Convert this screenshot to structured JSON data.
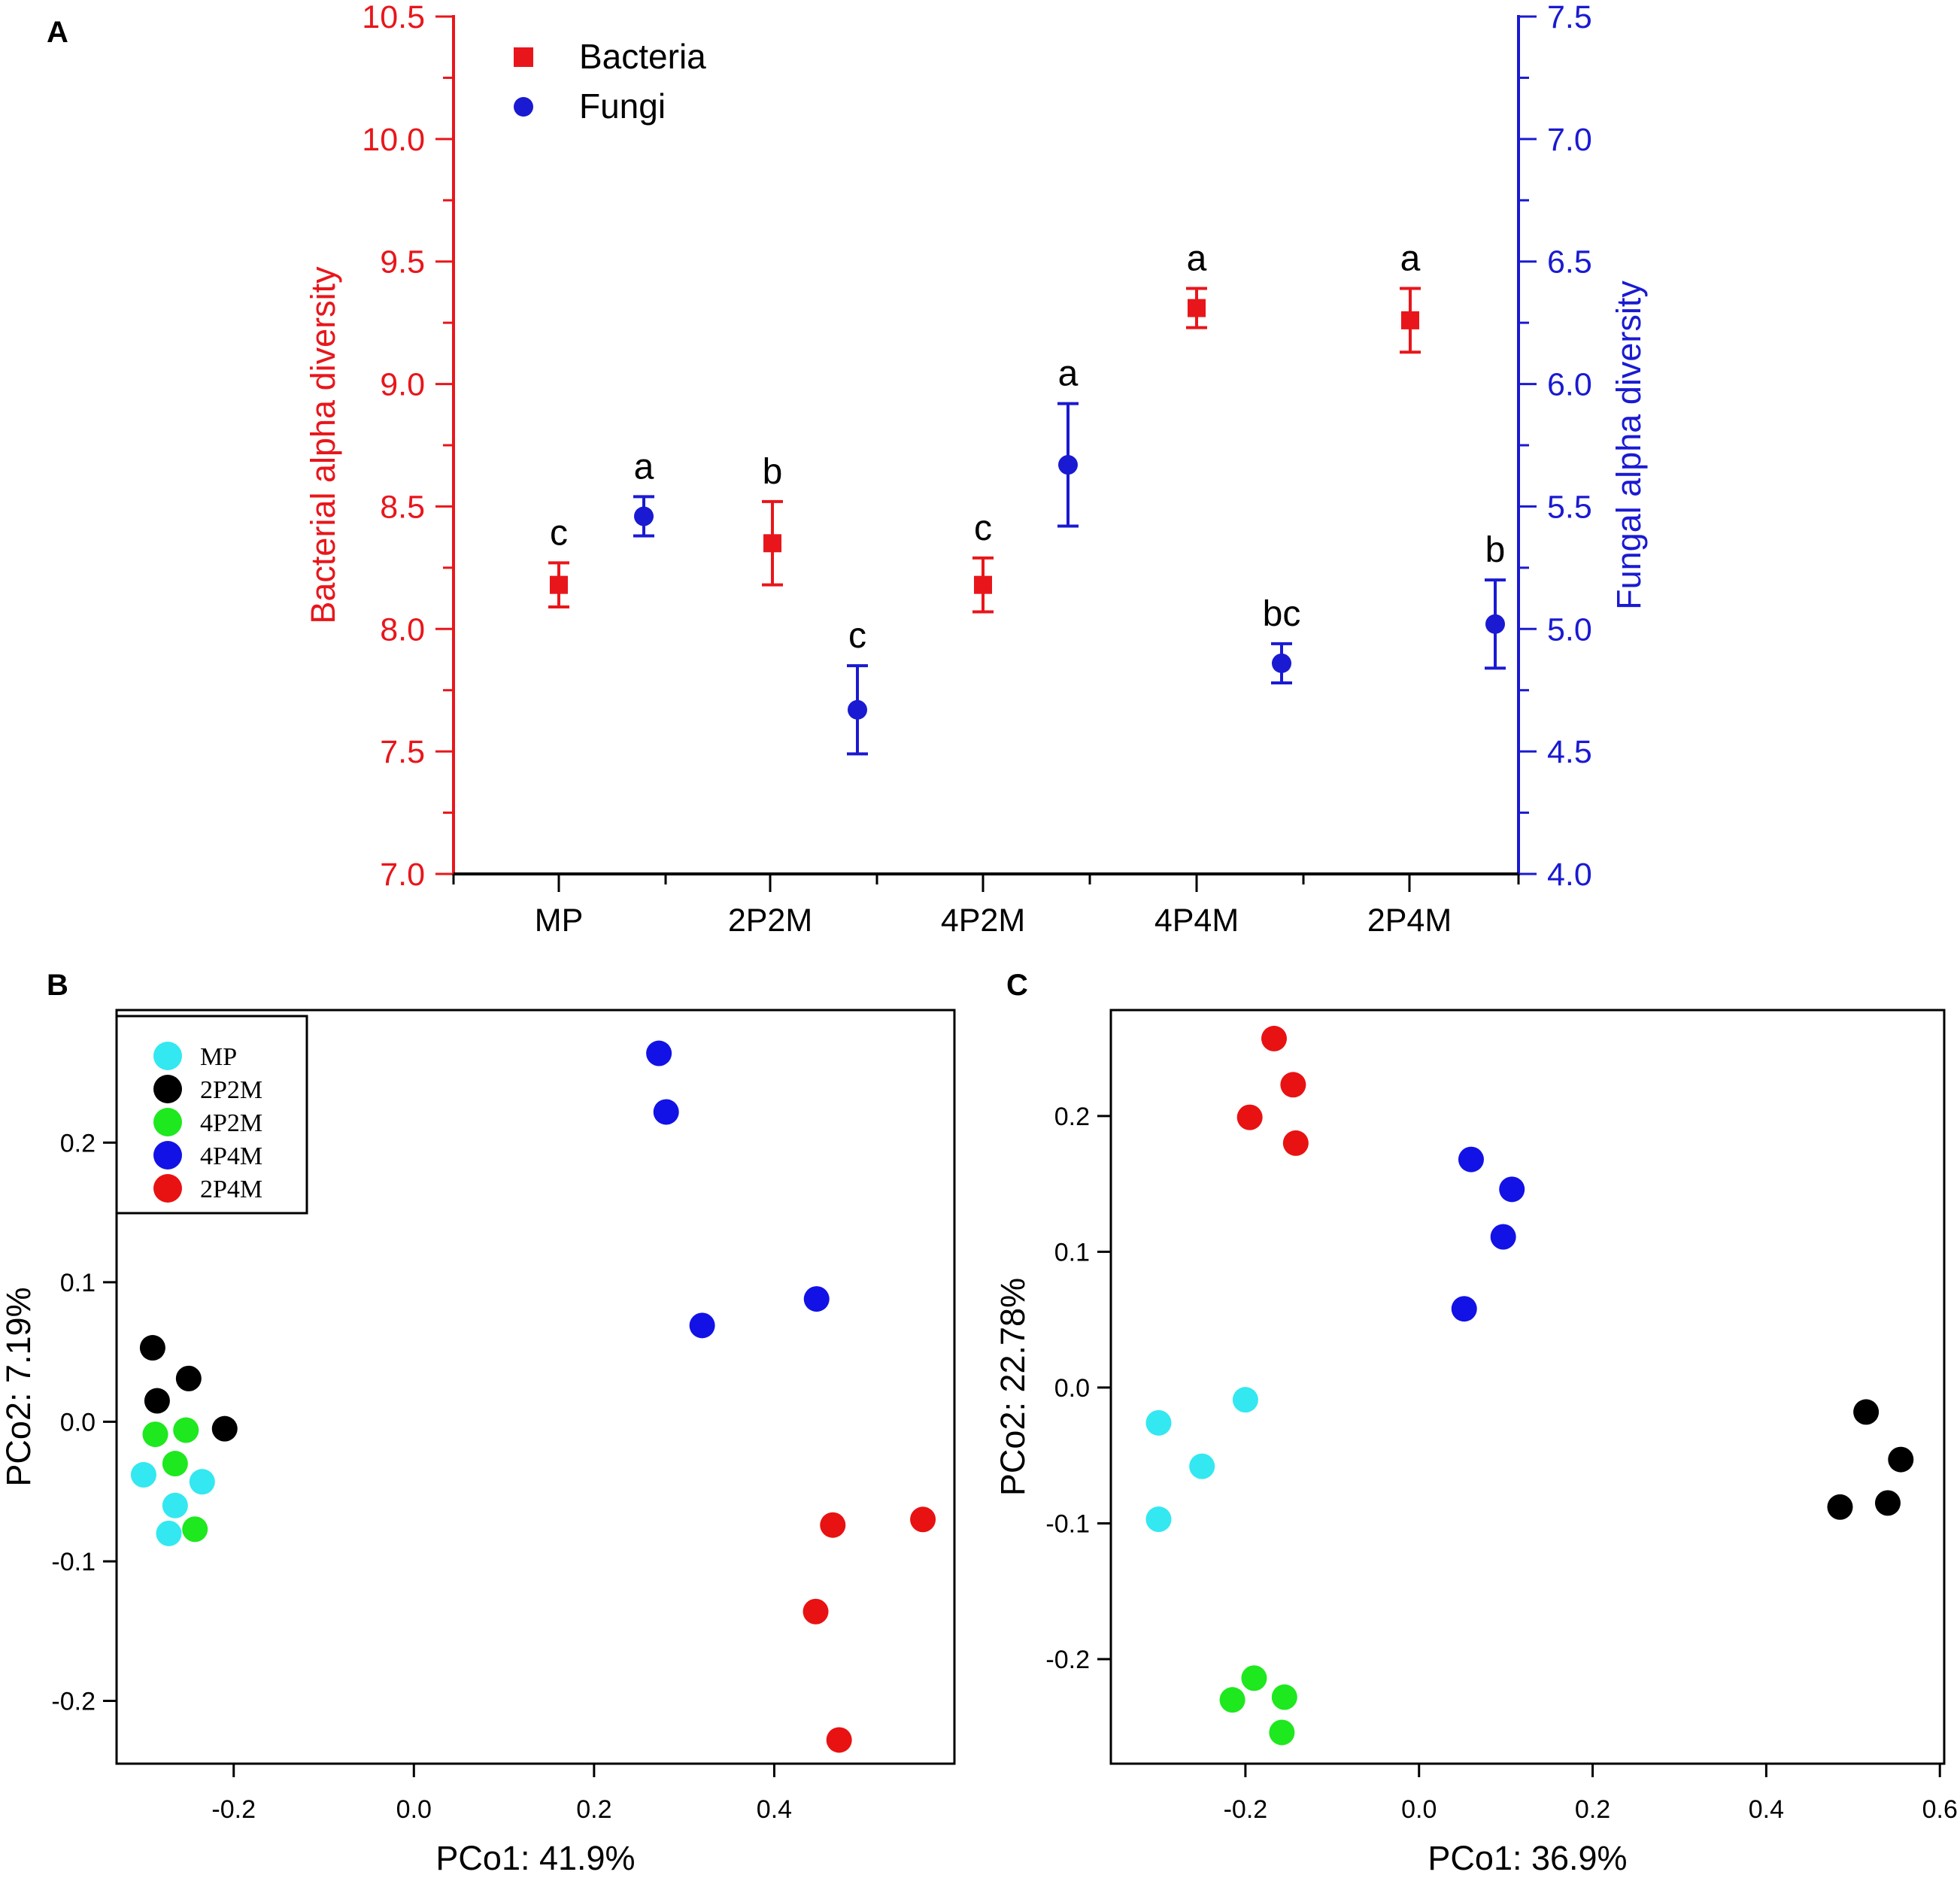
{
  "colors": {
    "red": "#e8161b",
    "blue": "#1a1ad2",
    "black": "#000000",
    "MP": "#33e8f0",
    "2P2M": "#000000",
    "4P2M": "#1ee81e",
    "4P4M": "#1212e6",
    "2P4M": "#e81212"
  },
  "chart_data": [
    {
      "id": "A",
      "panel_label": "A",
      "type": "scatter",
      "categories": [
        "MP",
        "2P2M",
        "4P2M",
        "4P4M",
        "2P4M"
      ],
      "yleft": {
        "label": "Bacterial alpha diversity",
        "lim": [
          7.0,
          10.5
        ],
        "ticks": [
          "7.0",
          "7.5",
          "8.0",
          "8.5",
          "9.0",
          "9.5",
          "10.0",
          "10.5"
        ]
      },
      "yright": {
        "label": "Fungal alpha diversity",
        "lim": [
          4.0,
          7.5
        ],
        "ticks": [
          "4.0",
          "4.5",
          "5.0",
          "5.5",
          "6.0",
          "6.5",
          "7.0",
          "7.5"
        ]
      },
      "legend": [
        {
          "name": "Bacteria",
          "marker": "square",
          "color": "#e8161b"
        },
        {
          "name": "Fungi",
          "marker": "circle",
          "color": "#1a1ad2"
        }
      ],
      "series": [
        {
          "name": "Bacteria",
          "axis": "left",
          "values": [
            8.18,
            8.35,
            8.18,
            9.31,
            9.26
          ],
          "errors": [
            0.09,
            0.17,
            0.11,
            0.08,
            0.13
          ],
          "letters": [
            "c",
            "b",
            "c",
            "a",
            "a"
          ]
        },
        {
          "name": "Fungi",
          "axis": "right",
          "values": [
            5.46,
            4.67,
            5.67,
            4.86,
            5.02
          ],
          "errors": [
            0.08,
            0.18,
            0.25,
            0.08,
            0.18
          ],
          "letters": [
            "a",
            "c",
            "a",
            "bc",
            "b"
          ]
        }
      ]
    },
    {
      "id": "B",
      "panel_label": "B",
      "type": "scatter",
      "xlabel": "PCo1: 41.9%",
      "ylabel": "PCo2: 7.19%",
      "xlim": [
        -0.33,
        0.6
      ],
      "ylim": [
        -0.245,
        0.295
      ],
      "xticks": [
        "-0.2",
        "0.0",
        "0.2",
        "0.4"
      ],
      "yticks": [
        "-0.2",
        "-0.1",
        "0.0",
        "0.1",
        "0.2"
      ],
      "legend": [
        "MP",
        "2P2M",
        "4P2M",
        "4P4M",
        "2P4M"
      ],
      "groups": [
        {
          "name": "MP",
          "points": [
            [
              -0.3,
              -0.038
            ],
            [
              -0.265,
              -0.06
            ],
            [
              -0.235,
              -0.043
            ],
            [
              -0.272,
              -0.08
            ]
          ]
        },
        {
          "name": "2P2M",
          "points": [
            [
              -0.29,
              0.053
            ],
            [
              -0.285,
              0.015
            ],
            [
              -0.25,
              0.031
            ],
            [
              -0.21,
              -0.005
            ]
          ]
        },
        {
          "name": "4P2M",
          "points": [
            [
              -0.287,
              -0.009
            ],
            [
              -0.253,
              -0.006
            ],
            [
              -0.265,
              -0.03
            ],
            [
              -0.243,
              -0.077
            ]
          ]
        },
        {
          "name": "4P4M",
          "points": [
            [
              0.272,
              0.264
            ],
            [
              0.28,
              0.222
            ],
            [
              0.32,
              0.069
            ],
            [
              0.447,
              0.088
            ]
          ]
        },
        {
          "name": "2P4M",
          "points": [
            [
              0.465,
              -0.074
            ],
            [
              0.565,
              -0.07
            ],
            [
              0.446,
              -0.136
            ],
            [
              0.472,
              -0.228
            ]
          ]
        }
      ]
    },
    {
      "id": "C",
      "panel_label": "C",
      "type": "scatter",
      "xlabel": "PCo1: 36.9%",
      "ylabel": "PCo2: 22.78%",
      "xlim": [
        -0.355,
        0.605
      ],
      "ylim": [
        -0.277,
        0.278
      ],
      "xticks": [
        "-0.2",
        "0.0",
        "0.2",
        "0.4",
        "0.6"
      ],
      "yticks": [
        "-0.2",
        "-0.1",
        "0.0",
        "0.1",
        "0.2"
      ],
      "groups": [
        {
          "name": "MP",
          "points": [
            [
              -0.3,
              -0.026
            ],
            [
              -0.2,
              -0.009
            ],
            [
              -0.25,
              -0.058
            ],
            [
              -0.3,
              -0.097
            ]
          ]
        },
        {
          "name": "2P2M",
          "points": [
            [
              0.515,
              -0.018
            ],
            [
              0.555,
              -0.053
            ],
            [
              0.54,
              -0.085
            ],
            [
              0.485,
              -0.088
            ]
          ]
        },
        {
          "name": "4P2M",
          "points": [
            [
              -0.19,
              -0.214
            ],
            [
              -0.215,
              -0.23
            ],
            [
              -0.155,
              -0.228
            ],
            [
              -0.158,
              -0.254
            ]
          ]
        },
        {
          "name": "4P4M",
          "points": [
            [
              0.06,
              0.168
            ],
            [
              0.107,
              0.146
            ],
            [
              0.097,
              0.111
            ],
            [
              0.052,
              0.058
            ]
          ]
        },
        {
          "name": "2P4M",
          "points": [
            [
              -0.167,
              0.257
            ],
            [
              -0.145,
              0.223
            ],
            [
              -0.195,
              0.199
            ],
            [
              -0.142,
              0.18
            ]
          ]
        }
      ]
    }
  ]
}
